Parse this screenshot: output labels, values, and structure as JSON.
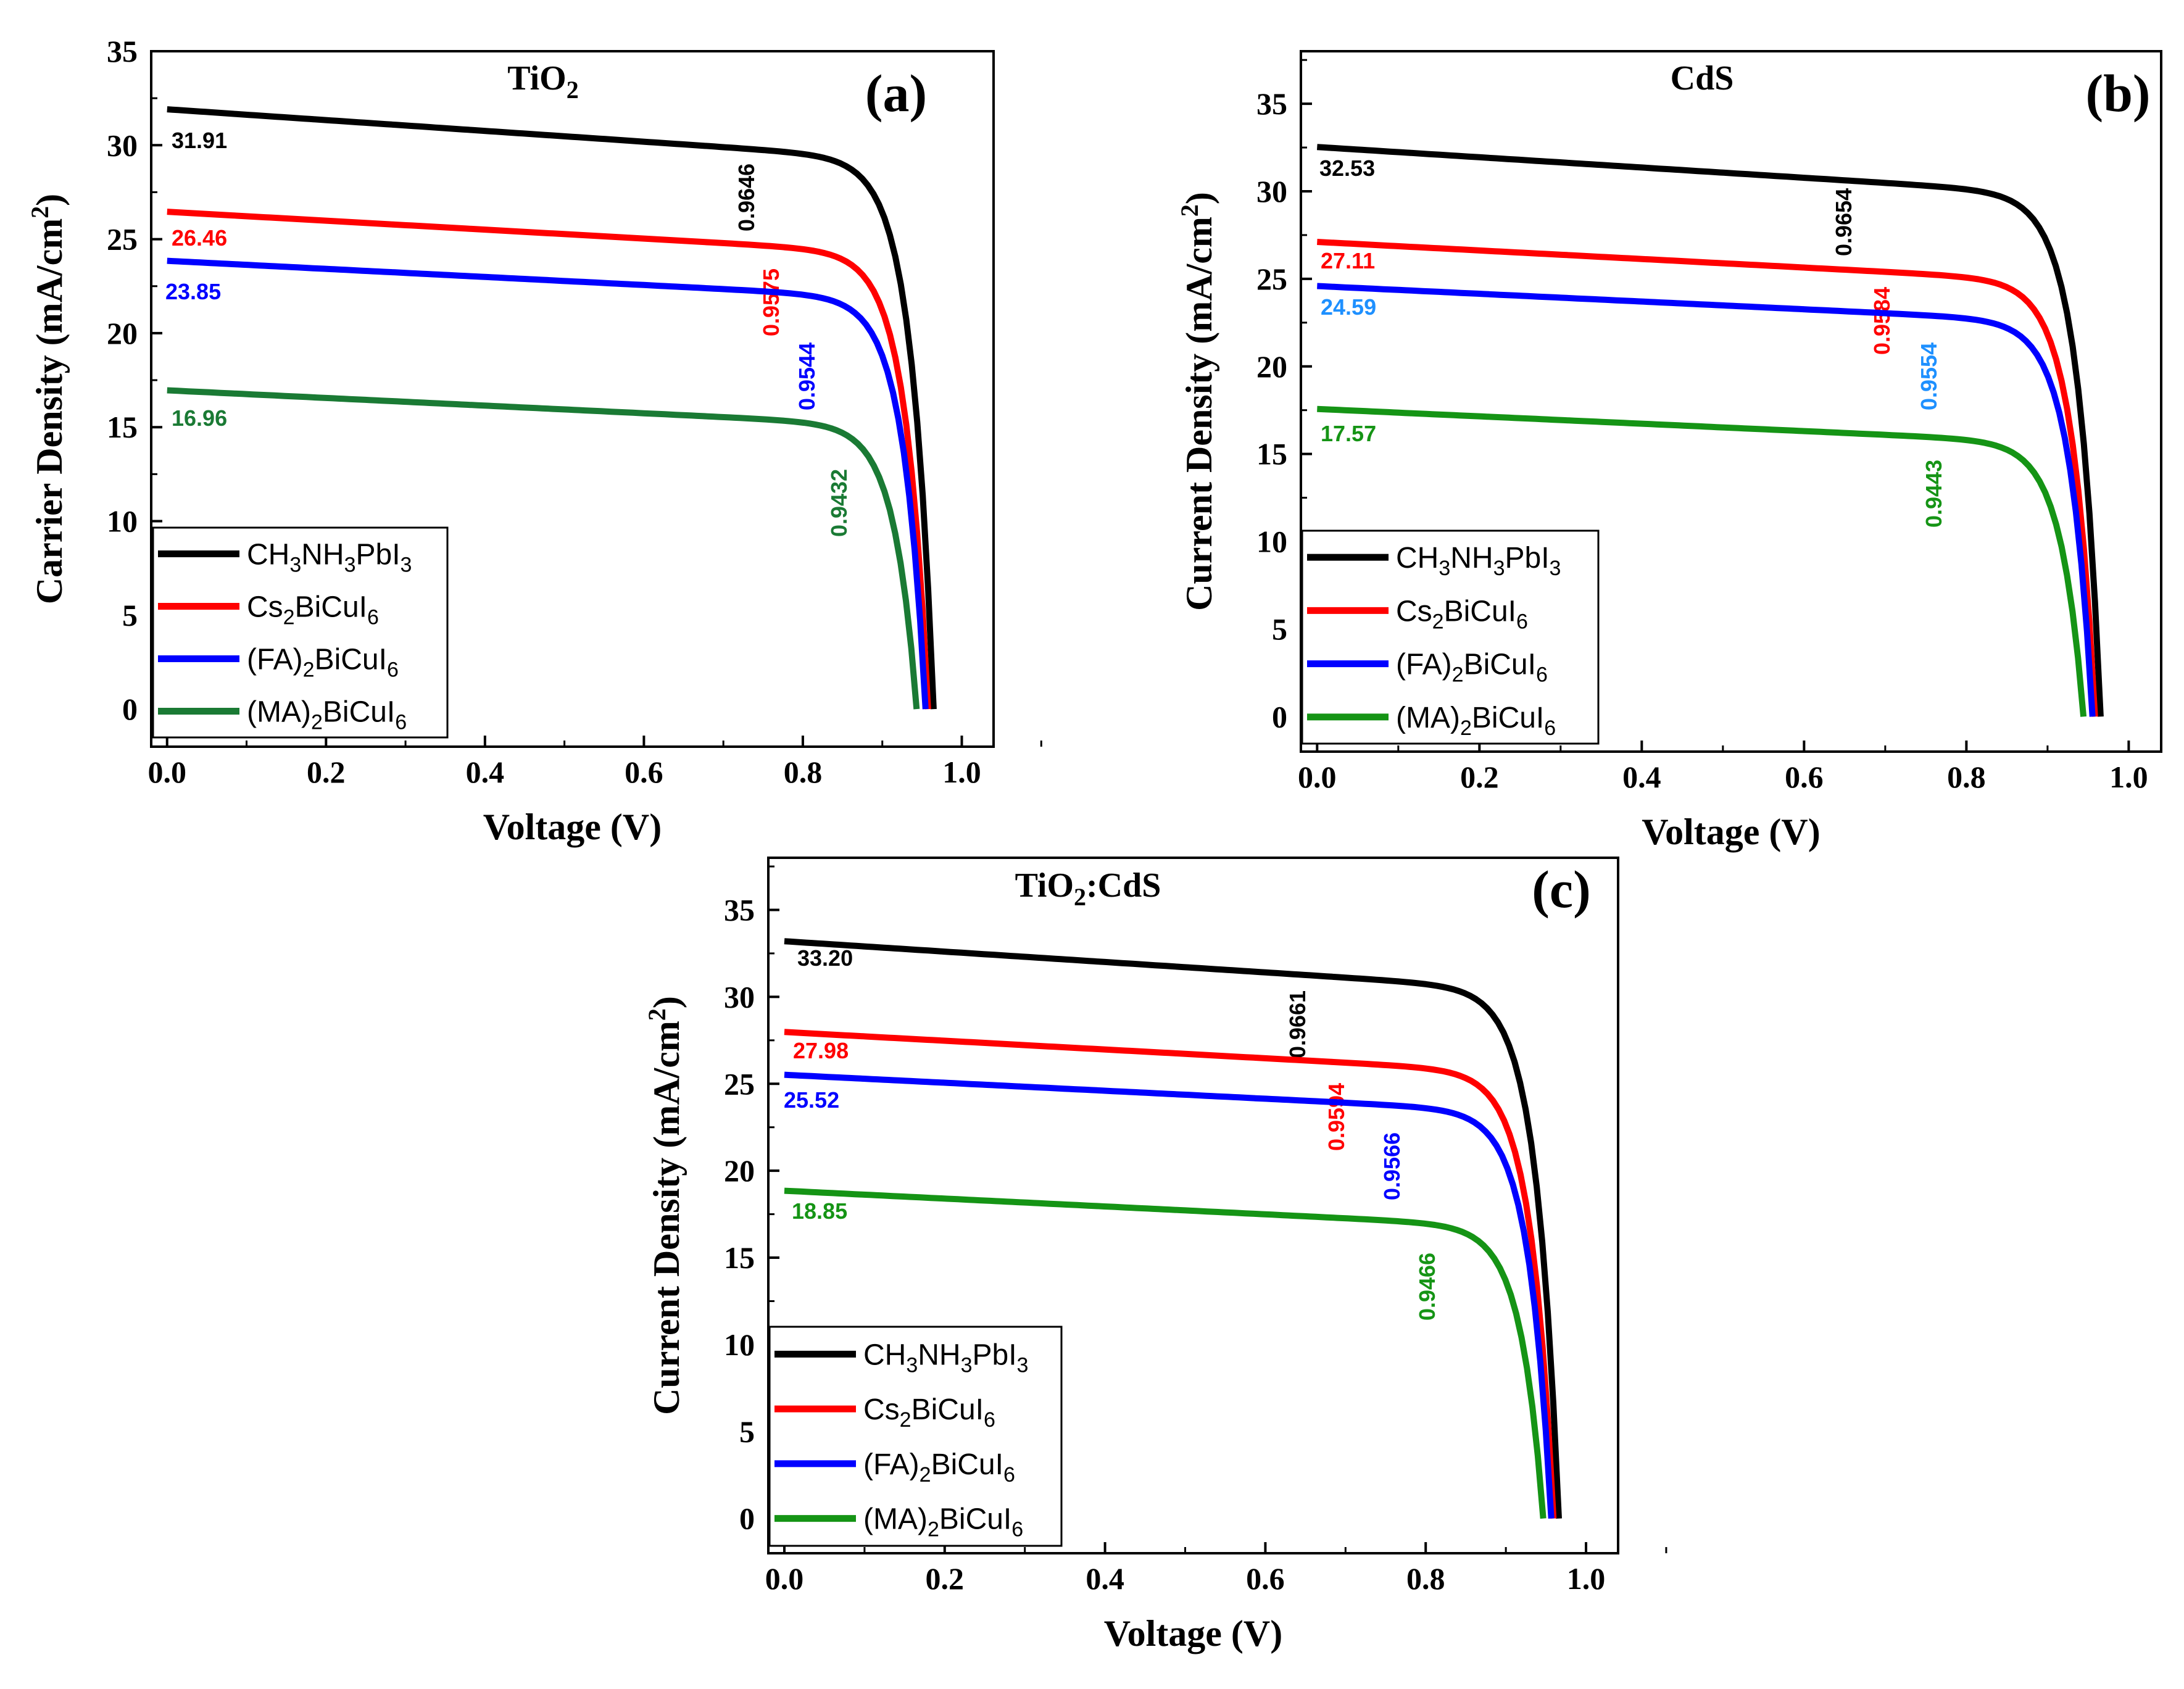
{
  "legend": {
    "ch3nh3pbi3": {
      "a": "CH",
      "b": "3",
      "c": "NH",
      "d": "3",
      "e": "PbI",
      "f": "3"
    },
    "cs2bicui6": {
      "a": "Cs",
      "b": "2",
      "c": "BiCuI",
      "d": "6"
    },
    "fa2bicui6": {
      "a": "(FA)",
      "b": "2",
      "c": "BiCuI",
      "d": "6"
    },
    "ma2bicui6": {
      "a": "(MA)",
      "b": "2",
      "c": "BiCuI",
      "d": "6"
    }
  },
  "colors": {
    "ch3nh3pbi3": "#000000",
    "cs2bicui6": "#ff0000",
    "fa2bicui6": "#0000ff",
    "ma2bicui6_a": "#1a7a34",
    "ma2bicui6_bc": "#159415",
    "fa_jsc_label_b": "#1e90ff"
  },
  "chart_data": [
    {
      "type": "line",
      "panel": "(a)",
      "title": {
        "main": "TiO",
        "sub": "2"
      },
      "xlabel": "Voltage (V)",
      "ylabel": {
        "main": "Carrier Density (mA/cm",
        "sup": "2",
        "end": ")"
      },
      "xlim": [
        -0.02,
        1.04
      ],
      "ylim": [
        -2,
        35
      ],
      "xticks": [
        "0.0",
        "0.2",
        "0.4",
        "0.6",
        "0.8",
        "1.0"
      ],
      "yticks": [
        "0",
        "5",
        "10",
        "15",
        "20",
        "25",
        "30",
        "35"
      ],
      "series": [
        {
          "key": "ch3nh3pbi3",
          "jsc": 31.91,
          "voc": 0.9646,
          "jsc_label": "31.91",
          "voc_label": "0.9646"
        },
        {
          "key": "cs2bicui6",
          "jsc": 26.46,
          "voc": 0.9575,
          "jsc_label": "26.46",
          "voc_label": "0.9575"
        },
        {
          "key": "fa2bicui6",
          "jsc": 23.85,
          "voc": 0.9544,
          "jsc_label": "23.85",
          "voc_label": "0.9544"
        },
        {
          "key": "ma2bicui6",
          "jsc": 16.96,
          "voc": 0.9432,
          "jsc_label": "16.96",
          "voc_label": "0.9432"
        }
      ]
    },
    {
      "type": "line",
      "panel": "(b)",
      "title": {
        "main": "CdS",
        "sub": ""
      },
      "xlabel": "Voltage (V)",
      "ylabel": {
        "main": "Current Density (mA/cm",
        "sup": "2",
        "end": ")"
      },
      "xlim": [
        -0.02,
        1.04
      ],
      "ylim": [
        -2,
        38
      ],
      "xticks": [
        "0.0",
        "0.2",
        "0.4",
        "0.6",
        "0.8",
        "1.0"
      ],
      "yticks": [
        "0",
        "5",
        "10",
        "15",
        "20",
        "25",
        "30",
        "35"
      ],
      "series": [
        {
          "key": "ch3nh3pbi3",
          "jsc": 32.53,
          "voc": 0.9654,
          "jsc_label": "32.53",
          "voc_label": "0.9654"
        },
        {
          "key": "cs2bicui6",
          "jsc": 27.11,
          "voc": 0.9584,
          "jsc_label": "27.11",
          "voc_label": "0.9584"
        },
        {
          "key": "fa2bicui6",
          "jsc": 24.59,
          "voc": 0.9554,
          "jsc_label": "24.59",
          "voc_label": "0.9554"
        },
        {
          "key": "ma2bicui6",
          "jsc": 17.57,
          "voc": 0.9443,
          "jsc_label": "17.57",
          "voc_label": "0.9443"
        }
      ]
    },
    {
      "type": "line",
      "panel": "(c)",
      "title": {
        "main": "TiO",
        "sub": "2",
        "end": ":CdS"
      },
      "xlabel": "Voltage (V)",
      "ylabel": {
        "main": "Current Density (mA/cm",
        "sup": "2",
        "end": ")"
      },
      "xlim": [
        -0.02,
        1.04
      ],
      "ylim": [
        -2,
        38
      ],
      "xticks": [
        "0.0",
        "0.2",
        "0.4",
        "0.6",
        "0.8",
        "1.0"
      ],
      "yticks": [
        "0",
        "5",
        "10",
        "15",
        "20",
        "25",
        "30",
        "35"
      ],
      "series": [
        {
          "key": "ch3nh3pbi3",
          "jsc": 33.2,
          "voc": 0.9661,
          "jsc_label": "33.20",
          "voc_label": "0.9661"
        },
        {
          "key": "cs2bicui6",
          "jsc": 27.98,
          "voc": 0.9594,
          "jsc_label": "27.98",
          "voc_label": "0.9594"
        },
        {
          "key": "fa2bicui6",
          "jsc": 25.52,
          "voc": 0.9566,
          "jsc_label": "25.52",
          "voc_label": "0.9566"
        },
        {
          "key": "ma2bicui6",
          "jsc": 18.85,
          "voc": 0.9466,
          "jsc_label": "18.85",
          "voc_label": "0.9466"
        }
      ]
    }
  ]
}
